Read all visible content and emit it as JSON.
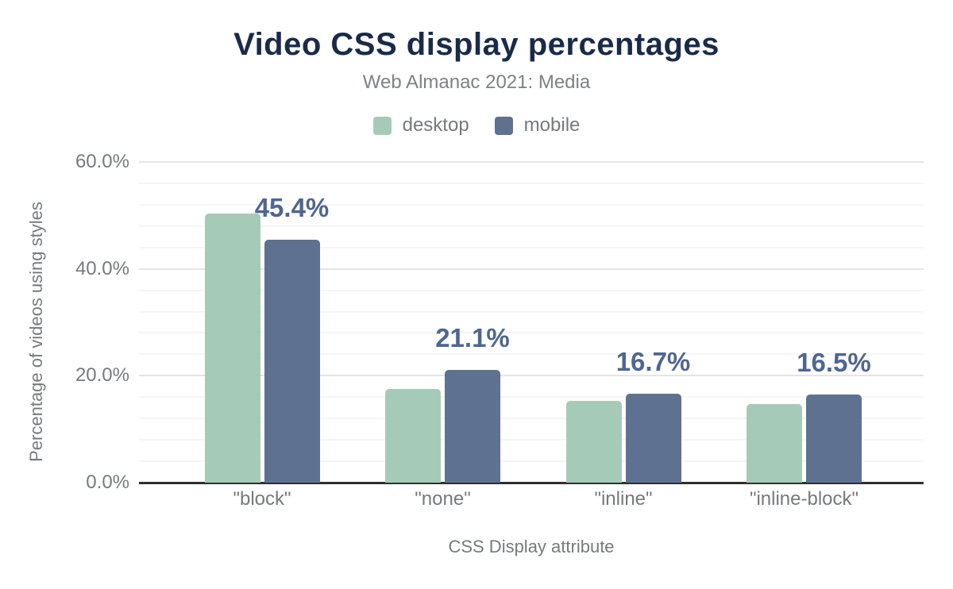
{
  "chart_data": {
    "type": "bar",
    "title": "Video CSS display percentages",
    "subtitle": "Web Almanac 2021: Media",
    "xlabel": "CSS Display attribute",
    "ylabel": "Percentage of videos using styles",
    "categories": [
      "\"block\"",
      "\"none\"",
      "\"inline\"",
      "\"inline-block\""
    ],
    "series": [
      {
        "name": "desktop",
        "color": "#a6cab8",
        "values": [
          50.3,
          17.5,
          15.3,
          14.7
        ]
      },
      {
        "name": "mobile",
        "color": "#5e7190",
        "values": [
          45.4,
          21.1,
          16.7,
          16.5
        ]
      }
    ],
    "data_labels": {
      "series": "mobile",
      "values": [
        "45.4%",
        "21.1%",
        "16.7%",
        "16.5%"
      ],
      "color": "#4e6690"
    },
    "ylim": [
      0,
      60
    ],
    "yticks": [
      {
        "value": 0,
        "label": "0.0%"
      },
      {
        "value": 20,
        "label": "20.0%"
      },
      {
        "value": 40,
        "label": "40.0%"
      },
      {
        "value": 60,
        "label": "60.0%"
      }
    ],
    "grid": {
      "minor_step": 4,
      "major_step": 20,
      "minor_color": "#f6f6f6",
      "major_color": "#e5e5e5"
    },
    "legend_position": "top",
    "colors": {
      "title": "#1a2b49",
      "text": "#76797d",
      "axis_line": "#2f2f2f"
    }
  }
}
